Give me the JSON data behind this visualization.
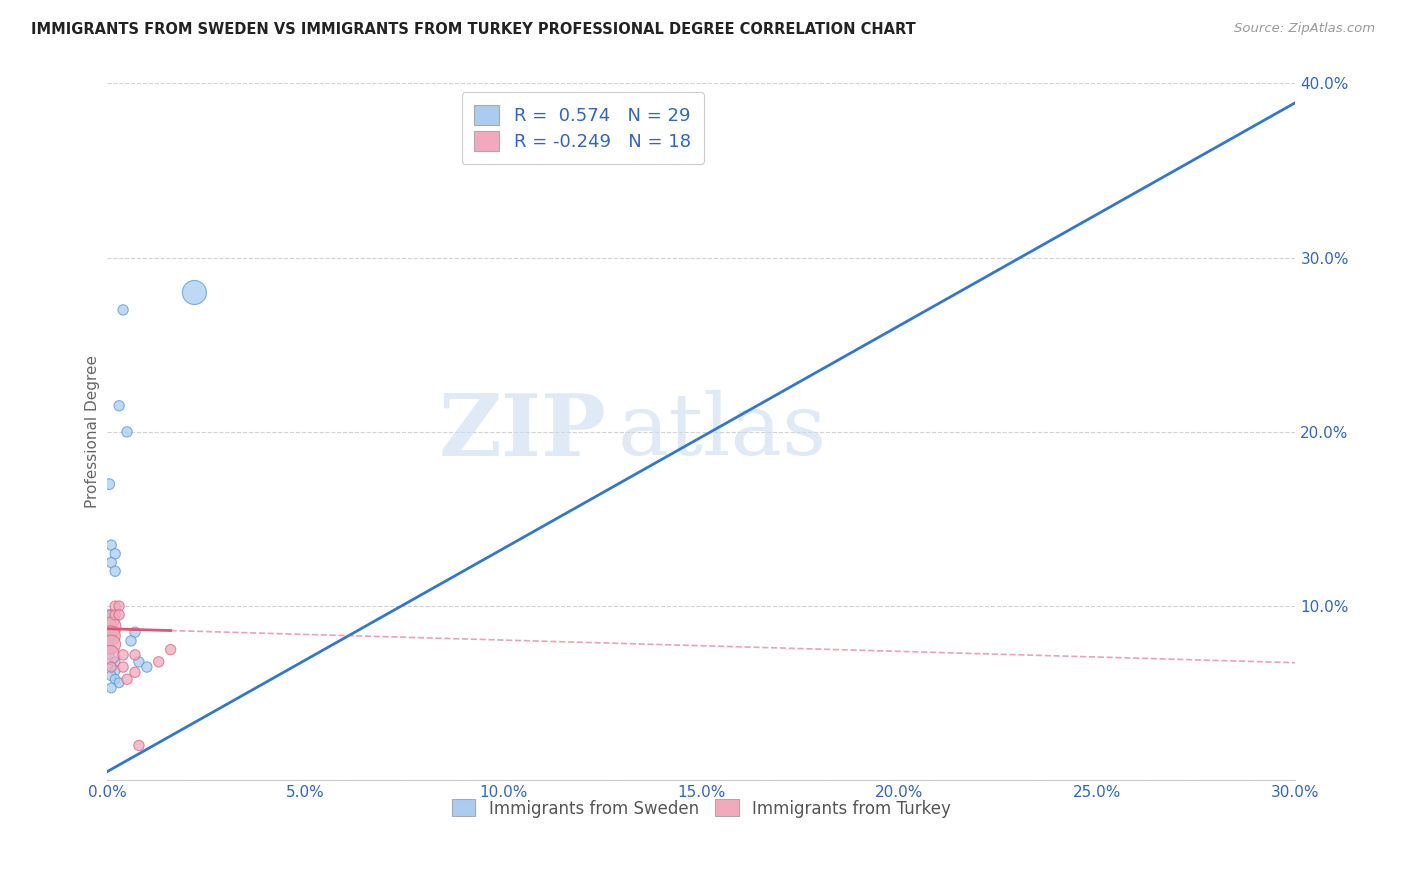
{
  "title": "IMMIGRANTS FROM SWEDEN VS IMMIGRANTS FROM TURKEY PROFESSIONAL DEGREE CORRELATION CHART",
  "source": "Source: ZipAtlas.com",
  "ylabel": "Professional Degree",
  "xlim": [
    0.0,
    0.3
  ],
  "ylim": [
    0.0,
    0.4
  ],
  "xticks": [
    0.0,
    0.05,
    0.1,
    0.15,
    0.2,
    0.25,
    0.3
  ],
  "yticks": [
    0.0,
    0.1,
    0.2,
    0.3,
    0.4
  ],
  "xtick_labels": [
    "0.0%",
    "5.0%",
    "10.0%",
    "15.0%",
    "20.0%",
    "25.0%",
    "30.0%"
  ],
  "ytick_labels": [
    "",
    "10.0%",
    "20.0%",
    "30.0%",
    "40.0%"
  ],
  "sweden_color": "#aaccf0",
  "turkey_color": "#f0aabb",
  "sweden_edge_color": "#5599dd",
  "turkey_edge_color": "#dd6688",
  "sweden_line_color": "#3377cc",
  "turkey_line_color": "#dd5577",
  "legend_labels": [
    "Immigrants from Sweden",
    "Immigrants from Turkey"
  ],
  "R_sweden": 0.574,
  "N_sweden": 29,
  "R_turkey": -0.249,
  "N_turkey": 18,
  "watermark_zip": "ZIP",
  "watermark_atlas": "atlas",
  "background_color": "#ffffff",
  "grid_color": "#cccccc",
  "sweden_line_slope": 1.28,
  "sweden_line_intercept": 0.005,
  "turkey_line_slope": -0.065,
  "turkey_line_intercept": 0.087,
  "sweden_points": [
    [
      0.0005,
      0.17
    ],
    [
      0.001,
      0.135
    ],
    [
      0.002,
      0.13
    ],
    [
      0.001,
      0.125
    ],
    [
      0.002,
      0.12
    ],
    [
      0.0005,
      0.095
    ],
    [
      0.001,
      0.095
    ],
    [
      0.0005,
      0.09
    ],
    [
      0.001,
      0.09
    ],
    [
      0.0015,
      0.085
    ],
    [
      0.001,
      0.082
    ],
    [
      0.0005,
      0.08
    ],
    [
      0.001,
      0.075
    ],
    [
      0.0005,
      0.072
    ],
    [
      0.002,
      0.068
    ],
    [
      0.001,
      0.065
    ],
    [
      0.002,
      0.063
    ],
    [
      0.001,
      0.06
    ],
    [
      0.002,
      0.058
    ],
    [
      0.003,
      0.056
    ],
    [
      0.001,
      0.053
    ],
    [
      0.004,
      0.27
    ],
    [
      0.003,
      0.215
    ],
    [
      0.005,
      0.2
    ],
    [
      0.007,
      0.085
    ],
    [
      0.006,
      0.08
    ],
    [
      0.008,
      0.068
    ],
    [
      0.01,
      0.065
    ],
    [
      0.022,
      0.28
    ]
  ],
  "turkey_points": [
    [
      0.0005,
      0.092
    ],
    [
      0.001,
      0.088
    ],
    [
      0.0008,
      0.083
    ],
    [
      0.001,
      0.078
    ],
    [
      0.0008,
      0.072
    ],
    [
      0.001,
      0.065
    ],
    [
      0.002,
      0.1
    ],
    [
      0.002,
      0.095
    ],
    [
      0.003,
      0.1
    ],
    [
      0.003,
      0.095
    ],
    [
      0.004,
      0.072
    ],
    [
      0.004,
      0.065
    ],
    [
      0.005,
      0.058
    ],
    [
      0.007,
      0.072
    ],
    [
      0.007,
      0.062
    ],
    [
      0.008,
      0.02
    ],
    [
      0.013,
      0.068
    ],
    [
      0.016,
      0.075
    ]
  ],
  "sweden_bubble_sizes": [
    60,
    55,
    55,
    55,
    55,
    50,
    50,
    50,
    50,
    50,
    50,
    50,
    50,
    50,
    50,
    50,
    50,
    50,
    50,
    50,
    50,
    55,
    55,
    55,
    55,
    55,
    55,
    55,
    300
  ],
  "turkey_bubble_sizes": [
    200,
    200,
    200,
    180,
    180,
    55,
    55,
    55,
    55,
    55,
    55,
    55,
    55,
    55,
    55,
    55,
    55,
    55
  ]
}
